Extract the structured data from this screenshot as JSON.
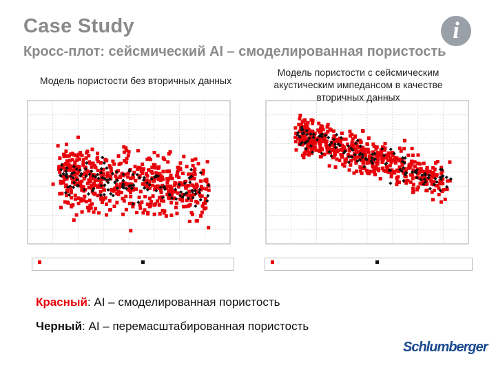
{
  "slide": {
    "title": "Case Study",
    "subtitle": "Кросс-плот: сейсмический AI – смоделированная пористость"
  },
  "captions": {
    "left": "Модель пористости без вторичных данных",
    "right": "Модель пористости с сейсмическим акустическим импедансом в качестве вторичных данных"
  },
  "notes": {
    "red_key": "Красный",
    "red_text": ": AI – смоделированная пористость",
    "black_key": "Черный",
    "black_text": ": AI – перемасштабированная пористость"
  },
  "logo_text": "Schlumberger",
  "info_icon": "info-icon",
  "colors": {
    "simulated": "#e8000a",
    "rescaled": "#111111",
    "grid": "#c8c8c8",
    "heading": "#8a8a8a",
    "logo": "#1a4a8e"
  },
  "chart_data": [
    {
      "type": "scatter",
      "grid": true,
      "xlim": [
        9000,
        10800
      ],
      "ylim": [
        0,
        0.24
      ],
      "series": [
        {
          "color": "#e8000a",
          "marker": "square",
          "spread": 0.055,
          "slope": -2e-05,
          "intercept": 0.3,
          "n": 560
        },
        {
          "color": "#111111",
          "marker": "diamond",
          "spread": 0.03,
          "slope": -2e-05,
          "intercept": 0.3,
          "n": 130
        }
      ]
    },
    {
      "type": "scatter",
      "grid": true,
      "xlim": [
        9000,
        10800
      ],
      "ylim": [
        0,
        0.24
      ],
      "series": [
        {
          "color": "#e8000a",
          "marker": "square",
          "spread": 0.032,
          "slope": -6e-05,
          "intercept": 0.74,
          "n": 560
        },
        {
          "color": "#111111",
          "marker": "diamond",
          "spread": 0.022,
          "slope": -6e-05,
          "intercept": 0.74,
          "n": 120
        }
      ]
    }
  ]
}
